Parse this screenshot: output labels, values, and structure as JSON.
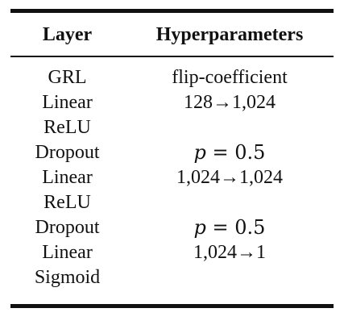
{
  "table": {
    "headers": {
      "layer": "Layer",
      "hyperparameters": "Hyperparameters"
    },
    "rows": [
      {
        "layer": "GRL",
        "hyper": "flip-coefficient"
      },
      {
        "layer": "Linear",
        "hyper": "128→1,024"
      },
      {
        "layer": "ReLU",
        "hyper": ""
      },
      {
        "layer": "Dropout",
        "hyper": "p = 0.5"
      },
      {
        "layer": "Linear",
        "hyper": "1,024→1,024"
      },
      {
        "layer": "ReLU",
        "hyper": ""
      },
      {
        "layer": "Dropout",
        "hyper": "p = 0.5"
      },
      {
        "layer": "Linear",
        "hyper": "1,024→1"
      },
      {
        "layer": "Sigmoid",
        "hyper": ""
      }
    ]
  }
}
